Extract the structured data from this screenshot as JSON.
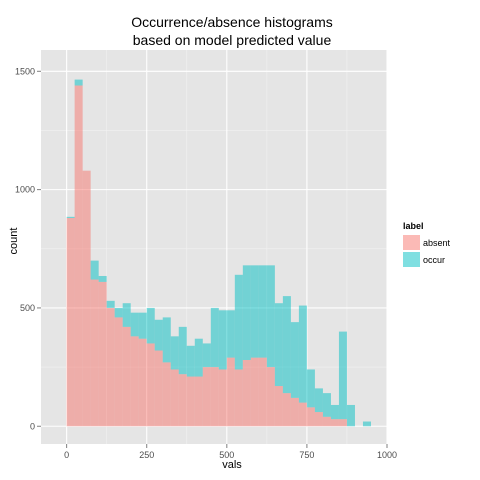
{
  "chart_data": {
    "type": "bar",
    "title": [
      "Occurrence/absence histograms",
      "based on model predicted value"
    ],
    "xlabel": "vals",
    "ylabel": "count",
    "xlim": [
      -80,
      1000
    ],
    "ylim": [
      -75,
      1590
    ],
    "x_ticks": [
      0,
      250,
      500,
      750,
      1000
    ],
    "y_ticks": [
      0,
      500,
      1000,
      1500
    ],
    "grid": true,
    "stacked": true,
    "bin_width": 25,
    "bin_starts": [
      0,
      25,
      50,
      75,
      100,
      125,
      150,
      175,
      200,
      225,
      250,
      275,
      300,
      325,
      350,
      375,
      400,
      425,
      450,
      475,
      500,
      525,
      550,
      575,
      600,
      625,
      650,
      675,
      700,
      725,
      750,
      775,
      800,
      825,
      850,
      875,
      900,
      925
    ],
    "series": [
      {
        "name": "absent",
        "values": [
          880,
          1440,
          1080,
          620,
          610,
          500,
          460,
          420,
          380,
          370,
          350,
          320,
          270,
          240,
          220,
          210,
          210,
          250,
          250,
          240,
          290,
          240,
          280,
          290,
          290,
          250,
          170,
          140,
          120,
          100,
          80,
          60,
          40,
          30,
          30,
          0,
          0,
          0
        ]
      },
      {
        "name": "occur",
        "values": [
          5,
          25,
          0,
          80,
          25,
          30,
          40,
          100,
          100,
          110,
          150,
          130,
          190,
          140,
          200,
          130,
          160,
          100,
          250,
          250,
          200,
          400,
          400,
          390,
          390,
          430,
          350,
          410,
          320,
          410,
          160,
          100,
          100,
          60,
          370,
          90,
          0,
          20
        ]
      }
    ],
    "legend": {
      "title": "label",
      "placement": "right",
      "entries": [
        "absent",
        "occur"
      ]
    },
    "colors": {
      "absent": "#f8766d",
      "occur": "#00bfc4",
      "panel": "#e5e5e5",
      "grid_major": "#ffffff",
      "grid_minor": "#f2f2f2"
    }
  }
}
